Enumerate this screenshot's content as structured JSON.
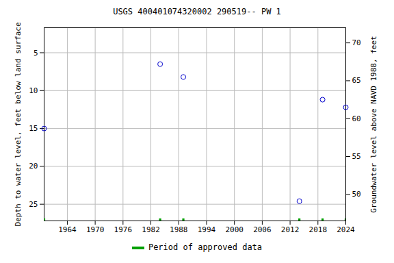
{
  "chart_data": {
    "type": "scatter",
    "title": "USGS 400401074320002 290519-- PW 1",
    "ylabel": "Depth to water level, feet below land surface",
    "y2label": "Groundwater level above NAVD 1988, feet",
    "x": [
      1959,
      1984,
      1989,
      2014,
      2019,
      2024
    ],
    "series": [
      {
        "values": [
          15.0,
          6.5,
          8.2,
          24.6,
          11.2,
          12.2
        ],
        "color": "#0000cc",
        "marker": "circle-open"
      },
      {
        "name": "Period of approved data",
        "color": "#00a000",
        "type": "period",
        "x": [
          1959,
          1984,
          1989,
          2014,
          2019,
          2024
        ]
      }
    ],
    "xlim": [
      1959,
      2024
    ],
    "xticks": [
      1964,
      1970,
      1976,
      1982,
      1988,
      1994,
      2000,
      2006,
      2012,
      2018,
      2024
    ],
    "ylim": [
      1.7,
      27.2
    ],
    "yticks": [
      5,
      10,
      15,
      20,
      25
    ],
    "y2lim": [
      72,
      46.5
    ],
    "y2ticks": [
      50,
      55,
      60,
      65,
      70
    ],
    "grid": true,
    "legend": "bottom"
  }
}
